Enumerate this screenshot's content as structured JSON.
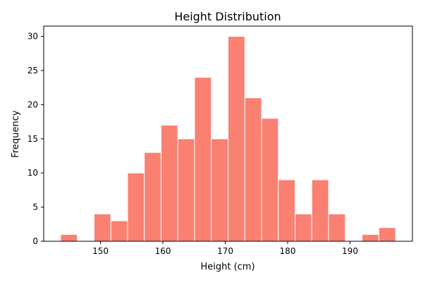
{
  "chart_data": {
    "type": "bar",
    "subtype": "histogram",
    "title": "Height Distribution",
    "xlabel": "Height (cm)",
    "ylabel": "Frequency",
    "bin_start": 143.6,
    "bin_end": 197.3,
    "counts": [
      1,
      0,
      4,
      3,
      10,
      13,
      17,
      15,
      24,
      15,
      30,
      21,
      18,
      9,
      4,
      9,
      4,
      0,
      1,
      2
    ],
    "xlim": [
      140.9,
      200.0
    ],
    "ylim": [
      0,
      31.5
    ],
    "xticks": [
      150,
      160,
      170,
      180,
      190
    ],
    "yticks": [
      0,
      5,
      10,
      15,
      20,
      25,
      30
    ],
    "bar_color": "#fa8072",
    "edge_color": "#ffffff",
    "grid": false
  }
}
